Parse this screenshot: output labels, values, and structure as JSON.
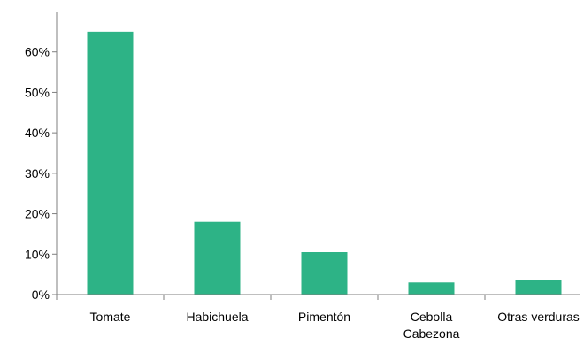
{
  "chart_data": {
    "type": "bar",
    "categories": [
      "Tomate",
      "Habichuela",
      "Pimentón",
      "Cebolla Cabezona",
      "Otras verduras"
    ],
    "category_lines": [
      [
        "Tomate"
      ],
      [
        "Habichuela"
      ],
      [
        "Pimentón"
      ],
      [
        "Cebolla",
        "Cabezona"
      ],
      [
        "Otras verduras"
      ]
    ],
    "values": [
      65,
      18,
      10.5,
      3,
      3.6
    ],
    "yticks": [
      "0%",
      "10%",
      "20%",
      "30%",
      "40%",
      "50%",
      "60%"
    ],
    "ylim": [
      0,
      70
    ],
    "color": "#2db386",
    "grid": false,
    "legend": "none"
  }
}
